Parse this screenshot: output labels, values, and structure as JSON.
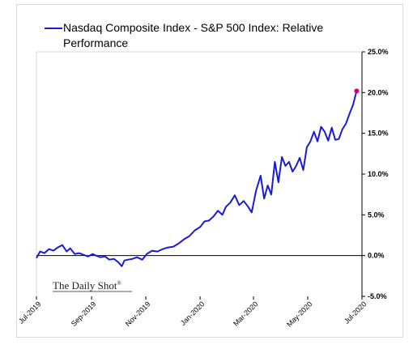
{
  "chart_data": {
    "type": "line",
    "title": "",
    "xlabel": "",
    "ylabel": "",
    "ylim": [
      -5,
      25
    ],
    "yticks": [
      "25.0%",
      "20.0%",
      "15.0%",
      "10.0%",
      "5.0%",
      "0.0%",
      "-5.0%"
    ],
    "ytick_values": [
      25,
      20,
      15,
      10,
      5,
      0,
      -5
    ],
    "xticks": [
      "Jul-2019",
      "Sep-2019",
      "Nov-2019",
      "Jan-2020",
      "Mar-2020",
      "May-2020",
      "Jul-2020"
    ],
    "xtick_values": [
      "2019-07-01",
      "2019-09-01",
      "2019-11-01",
      "2020-01-01",
      "2020-03-01",
      "2020-05-01",
      "2020-07-01"
    ],
    "grid": false,
    "zero_line": true,
    "legend_position": "top-left",
    "watermark": "The Daily Shot",
    "watermark_mark": "®",
    "colors": {
      "series": "#1a1adb",
      "endpoint": "#cc0077",
      "zero_line": "#000000",
      "frame": "#d9d9d9"
    },
    "series": [
      {
        "name": "Nasdaq Composite Index - S&P 500 Index:   Relative Performance",
        "legend_line1": "Nasdaq Composite Index - S&P 500 Index:   Relative",
        "legend_line2": "Performance",
        "x": [
          "2019-07-01",
          "2019-07-05",
          "2019-07-10",
          "2019-07-15",
          "2019-07-20",
          "2019-07-25",
          "2019-07-30",
          "2019-08-04",
          "2019-08-08",
          "2019-08-13",
          "2019-08-18",
          "2019-08-23",
          "2019-08-28",
          "2019-09-02",
          "2019-09-06",
          "2019-09-11",
          "2019-09-16",
          "2019-09-21",
          "2019-09-26",
          "2019-10-01",
          "2019-10-05",
          "2019-10-08",
          "2019-10-12",
          "2019-10-17",
          "2019-10-22",
          "2019-10-28",
          "2019-11-02",
          "2019-11-08",
          "2019-11-14",
          "2019-11-20",
          "2019-11-26",
          "2019-12-02",
          "2019-12-08",
          "2019-12-14",
          "2019-12-20",
          "2019-12-26",
          "2020-01-01",
          "2020-01-06",
          "2020-01-11",
          "2020-01-16",
          "2020-01-21",
          "2020-01-26",
          "2020-01-30",
          "2020-02-04",
          "2020-02-09",
          "2020-02-14",
          "2020-02-19",
          "2020-02-24",
          "2020-02-28",
          "2020-03-04",
          "2020-03-09",
          "2020-03-13",
          "2020-03-17",
          "2020-03-21",
          "2020-03-25",
          "2020-03-29",
          "2020-04-02",
          "2020-04-06",
          "2020-04-10",
          "2020-04-14",
          "2020-04-18",
          "2020-04-22",
          "2020-04-26",
          "2020-04-30",
          "2020-05-04",
          "2020-05-08",
          "2020-05-12",
          "2020-05-16",
          "2020-05-20",
          "2020-05-24",
          "2020-05-28",
          "2020-06-01",
          "2020-06-05",
          "2020-06-09",
          "2020-06-13",
          "2020-06-17",
          "2020-06-21",
          "2020-06-25"
        ],
        "values": [
          -0.3,
          0.5,
          0.3,
          0.8,
          0.6,
          1.0,
          1.3,
          0.5,
          0.9,
          0.2,
          0.3,
          0.1,
          -0.1,
          0.2,
          0.0,
          -0.2,
          -0.1,
          -0.5,
          -0.4,
          -0.8,
          -1.3,
          -0.6,
          -0.5,
          -0.4,
          -0.2,
          -0.5,
          0.2,
          0.6,
          0.5,
          0.8,
          1.0,
          1.1,
          1.5,
          2.0,
          2.4,
          3.1,
          3.5,
          4.2,
          4.3,
          4.8,
          5.5,
          5.0,
          6.0,
          6.5,
          7.4,
          6.2,
          6.7,
          6.0,
          5.3,
          8.0,
          9.8,
          7.0,
          8.6,
          7.5,
          11.5,
          9.0,
          12.1,
          11.0,
          11.5,
          10.3,
          11.0,
          12.0,
          10.5,
          13.3,
          14.0,
          15.2,
          14.0,
          15.8,
          15.2,
          14.1,
          15.7,
          14.2,
          14.3,
          15.5,
          16.2,
          17.4,
          18.5,
          20.2
        ]
      }
    ]
  }
}
